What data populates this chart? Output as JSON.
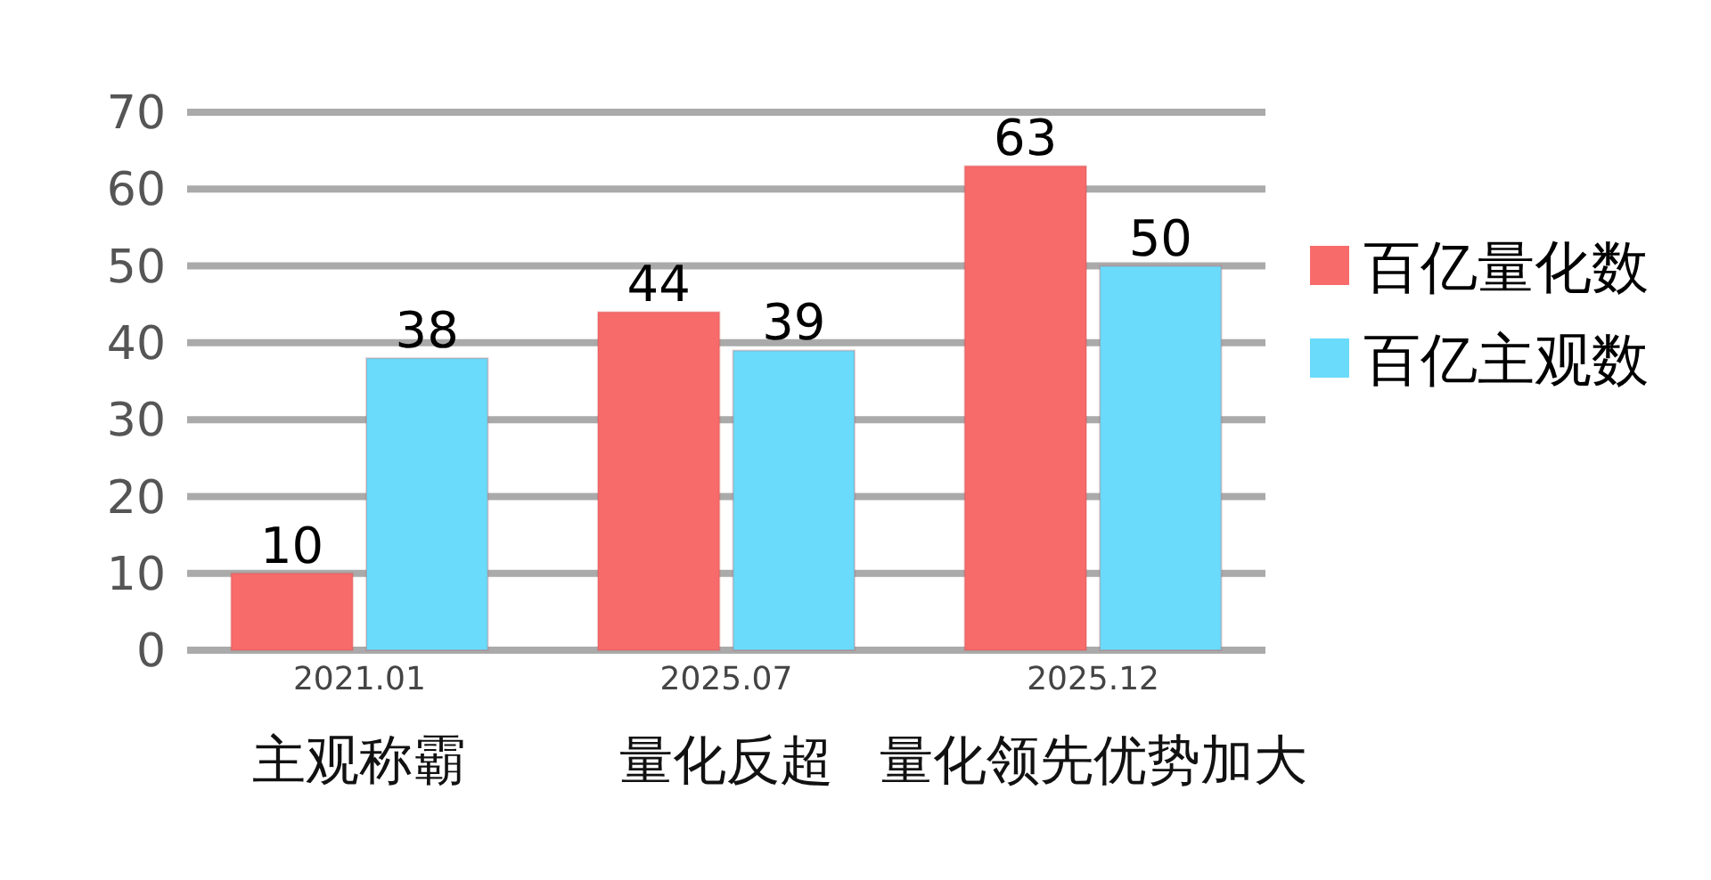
{
  "chart_data": {
    "type": "bar",
    "categories": [
      "2021.01\n主观称霸",
      "2025.07\n量化反超",
      "2025.12\n量化领先优势加大"
    ],
    "series": [
      {
        "name": "百亿量化数",
        "color": "#f76b6b",
        "values": [
          10,
          44,
          63
        ]
      },
      {
        "name": "百亿主观数",
        "color": "#6adbfa",
        "values": [
          38,
          39,
          50
        ]
      }
    ],
    "ylim": [
      0,
      70
    ],
    "yticks": [
      0,
      10,
      20,
      30,
      40,
      50,
      60,
      70
    ],
    "grid": "y",
    "legend": "right",
    "data_labels": true
  }
}
